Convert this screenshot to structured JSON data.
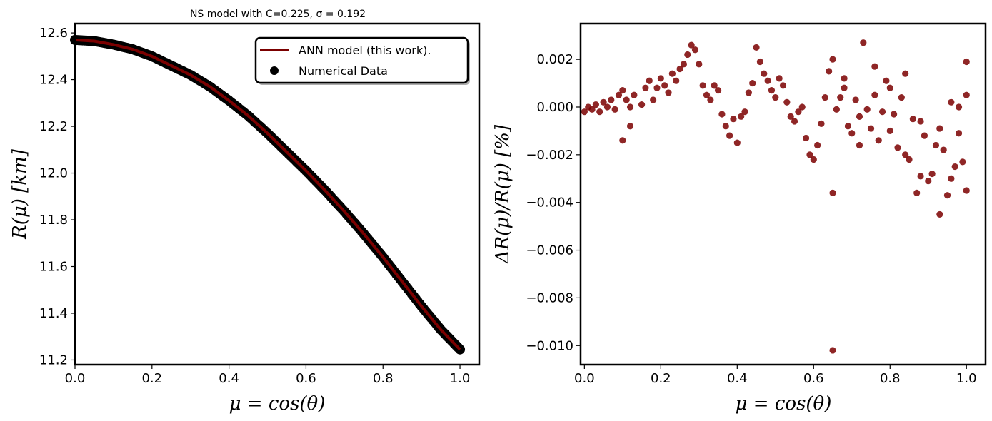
{
  "chart_data": [
    {
      "type": "line+scatter",
      "title": "NS model with C=0.225, σ = 0.192",
      "xlabel": "μ = cos(θ)",
      "ylabel": "R(μ) [km]",
      "xlim": [
        0.0,
        1.05
      ],
      "ylim": [
        11.18,
        12.64
      ],
      "xticks": [
        0.0,
        0.2,
        0.4,
        0.6,
        0.8,
        1.0
      ],
      "xtick_labels": [
        "0.0",
        "0.2",
        "0.4",
        "0.6",
        "0.8",
        "1.0"
      ],
      "yticks": [
        11.2,
        11.4,
        11.6,
        11.8,
        12.0,
        12.2,
        12.4,
        12.6
      ],
      "ytick_labels": [
        "11.2",
        "11.4",
        "11.6",
        "11.8",
        "12.0",
        "12.2",
        "12.4",
        "12.6"
      ],
      "legend_position": "top-right",
      "series": [
        {
          "name": "ANN model (this work).",
          "kind": "line",
          "color": "#7b0000",
          "x": [
            0.0,
            0.05,
            0.1,
            0.15,
            0.2,
            0.25,
            0.3,
            0.35,
            0.4,
            0.45,
            0.5,
            0.55,
            0.6,
            0.65,
            0.7,
            0.75,
            0.8,
            0.85,
            0.9,
            0.95,
            1.0
          ],
          "y": [
            12.57,
            12.565,
            12.55,
            12.53,
            12.5,
            12.46,
            12.42,
            12.37,
            12.31,
            12.245,
            12.17,
            12.09,
            12.01,
            11.925,
            11.835,
            11.74,
            11.64,
            11.535,
            11.43,
            11.33,
            11.245
          ]
        },
        {
          "name": "Numerical Data",
          "kind": "scatter",
          "color": "#000000",
          "x": [
            0.0,
            0.05,
            0.1,
            0.15,
            0.2,
            0.25,
            0.3,
            0.35,
            0.4,
            0.45,
            0.5,
            0.55,
            0.6,
            0.65,
            0.7,
            0.75,
            0.8,
            0.85,
            0.9,
            0.95,
            1.0
          ],
          "y": [
            12.57,
            12.565,
            12.55,
            12.53,
            12.5,
            12.46,
            12.42,
            12.37,
            12.31,
            12.245,
            12.17,
            12.09,
            12.01,
            11.925,
            11.835,
            11.74,
            11.64,
            11.535,
            11.43,
            11.33,
            11.245
          ]
        }
      ]
    },
    {
      "type": "scatter",
      "title": "",
      "xlabel": "μ = cos(θ)",
      "ylabel": "ΔR(μ)/R(μ) [%]",
      "xlim": [
        -0.01,
        1.05
      ],
      "ylim": [
        -0.0108,
        0.0035
      ],
      "xticks": [
        0.0,
        0.2,
        0.4,
        0.6,
        0.8,
        1.0
      ],
      "xtick_labels": [
        "0.0",
        "0.2",
        "0.4",
        "0.6",
        "0.8",
        "1.0"
      ],
      "yticks": [
        -0.01,
        -0.008,
        -0.006,
        -0.004,
        -0.002,
        0.0,
        0.002
      ],
      "ytick_labels": [
        "−0.010",
        "−0.008",
        "−0.006",
        "−0.004",
        "−0.002",
        "0.000",
        "0.002"
      ],
      "series": [
        {
          "kind": "scatter",
          "color": "#7b0000",
          "x": [
            0.0,
            0.01,
            0.02,
            0.03,
            0.04,
            0.05,
            0.06,
            0.07,
            0.08,
            0.09,
            0.1,
            0.11,
            0.12,
            0.13,
            0.15,
            0.16,
            0.17,
            0.18,
            0.19,
            0.2,
            0.21,
            0.22,
            0.23,
            0.24,
            0.25,
            0.26,
            0.27,
            0.28,
            0.29,
            0.3,
            0.31,
            0.32,
            0.33,
            0.34,
            0.35,
            0.36,
            0.37,
            0.38,
            0.39,
            0.4,
            0.41,
            0.42,
            0.43,
            0.44,
            0.45,
            0.46,
            0.47,
            0.48,
            0.49,
            0.5,
            0.51,
            0.52,
            0.53,
            0.54,
            0.55,
            0.56,
            0.57,
            0.58,
            0.59,
            0.6,
            0.61,
            0.62,
            0.63,
            0.64,
            0.65,
            0.65,
            0.66,
            0.67,
            0.68,
            0.69,
            0.7,
            0.71,
            0.72,
            0.73,
            0.74,
            0.75,
            0.76,
            0.77,
            0.78,
            0.79,
            0.8,
            0.81,
            0.82,
            0.83,
            0.84,
            0.85,
            0.86,
            0.87,
            0.88,
            0.89,
            0.9,
            0.91,
            0.92,
            0.93,
            0.94,
            0.95,
            0.96,
            0.97,
            0.98,
            0.99,
            1.0,
            1.0,
            1.0,
            0.1,
            0.12,
            0.65,
            0.68,
            0.72,
            0.76,
            0.8,
            0.84,
            0.88,
            0.93,
            0.96,
            0.98
          ],
          "y": [
            -0.0002,
            0.0,
            -0.0001,
            0.0001,
            -0.0002,
            0.0002,
            0.0,
            0.0003,
            -0.0001,
            0.0005,
            0.0007,
            0.0003,
            0.0,
            0.0005,
            0.0001,
            0.0008,
            0.0011,
            0.0003,
            0.0008,
            0.0012,
            0.0009,
            0.0006,
            0.0014,
            0.0011,
            0.0016,
            0.0018,
            0.0022,
            0.0026,
            0.0024,
            0.0018,
            0.0009,
            0.0005,
            0.0003,
            0.0009,
            0.0007,
            -0.0003,
            -0.0008,
            -0.0012,
            -0.0005,
            -0.0015,
            -0.0004,
            -0.0002,
            0.0006,
            0.001,
            0.0025,
            0.0019,
            0.0014,
            0.0011,
            0.0007,
            0.0004,
            0.0012,
            0.0009,
            0.0002,
            -0.0004,
            -0.0006,
            -0.0002,
            0.0,
            -0.0013,
            -0.002,
            -0.0022,
            -0.0016,
            -0.0007,
            0.0004,
            0.0015,
            0.002,
            -0.0036,
            -0.0001,
            0.0004,
            0.0008,
            -0.0008,
            -0.0011,
            0.0003,
            -0.0004,
            0.0027,
            -0.0001,
            -0.0009,
            0.0005,
            -0.0014,
            -0.0002,
            0.0011,
            -0.001,
            -0.0003,
            -0.0017,
            0.0004,
            -0.002,
            -0.0022,
            -0.0005,
            -0.0036,
            -0.0029,
            -0.0012,
            -0.0031,
            -0.0028,
            -0.0016,
            -0.0009,
            -0.0018,
            -0.0037,
            -0.003,
            -0.0025,
            -0.0011,
            -0.0023,
            0.0019,
            0.0005,
            -0.0035,
            -0.0014,
            -0.0008,
            -0.0102,
            0.0012,
            -0.0016,
            0.0017,
            0.0008,
            0.0014,
            -0.0006,
            -0.0045,
            0.0002,
            0.0
          ]
        }
      ]
    }
  ],
  "legend": {
    "line_label": "ANN model (this work).",
    "scatter_label": "Numerical Data"
  }
}
